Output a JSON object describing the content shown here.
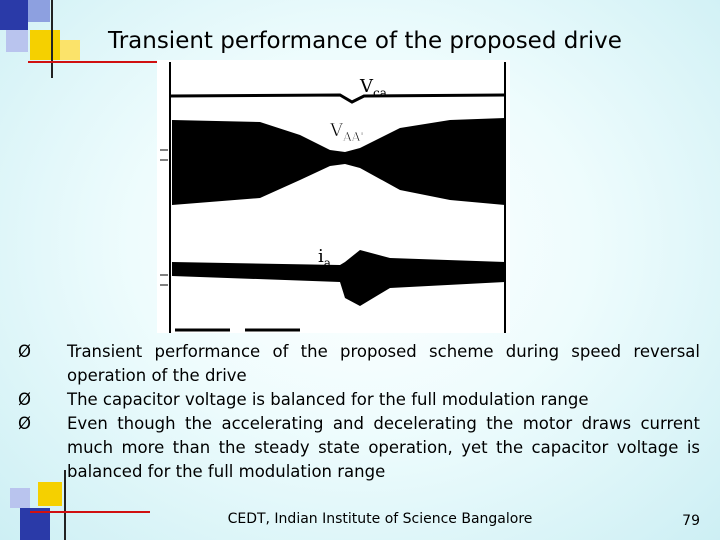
{
  "header": {
    "title": "Transient performance of the proposed drive"
  },
  "figure": {
    "labels": [
      {
        "text": "V",
        "sub": "ca"
      },
      {
        "text": "V",
        "sub": "AA'"
      },
      {
        "text": "i",
        "sub": "a"
      }
    ]
  },
  "bullets": [
    "Transient performance of the proposed scheme during speed reversal operation of the drive",
    "The capacitor voltage is balanced for the full modulation range",
    "Even though the accelerating and decelerating the motor draws current much more than the steady state operation, yet the capacitor voltage is balanced for the full modulation range"
  ],
  "footer": {
    "text": "CEDT, Indian Institute of Science Bangalore",
    "page": "79"
  }
}
